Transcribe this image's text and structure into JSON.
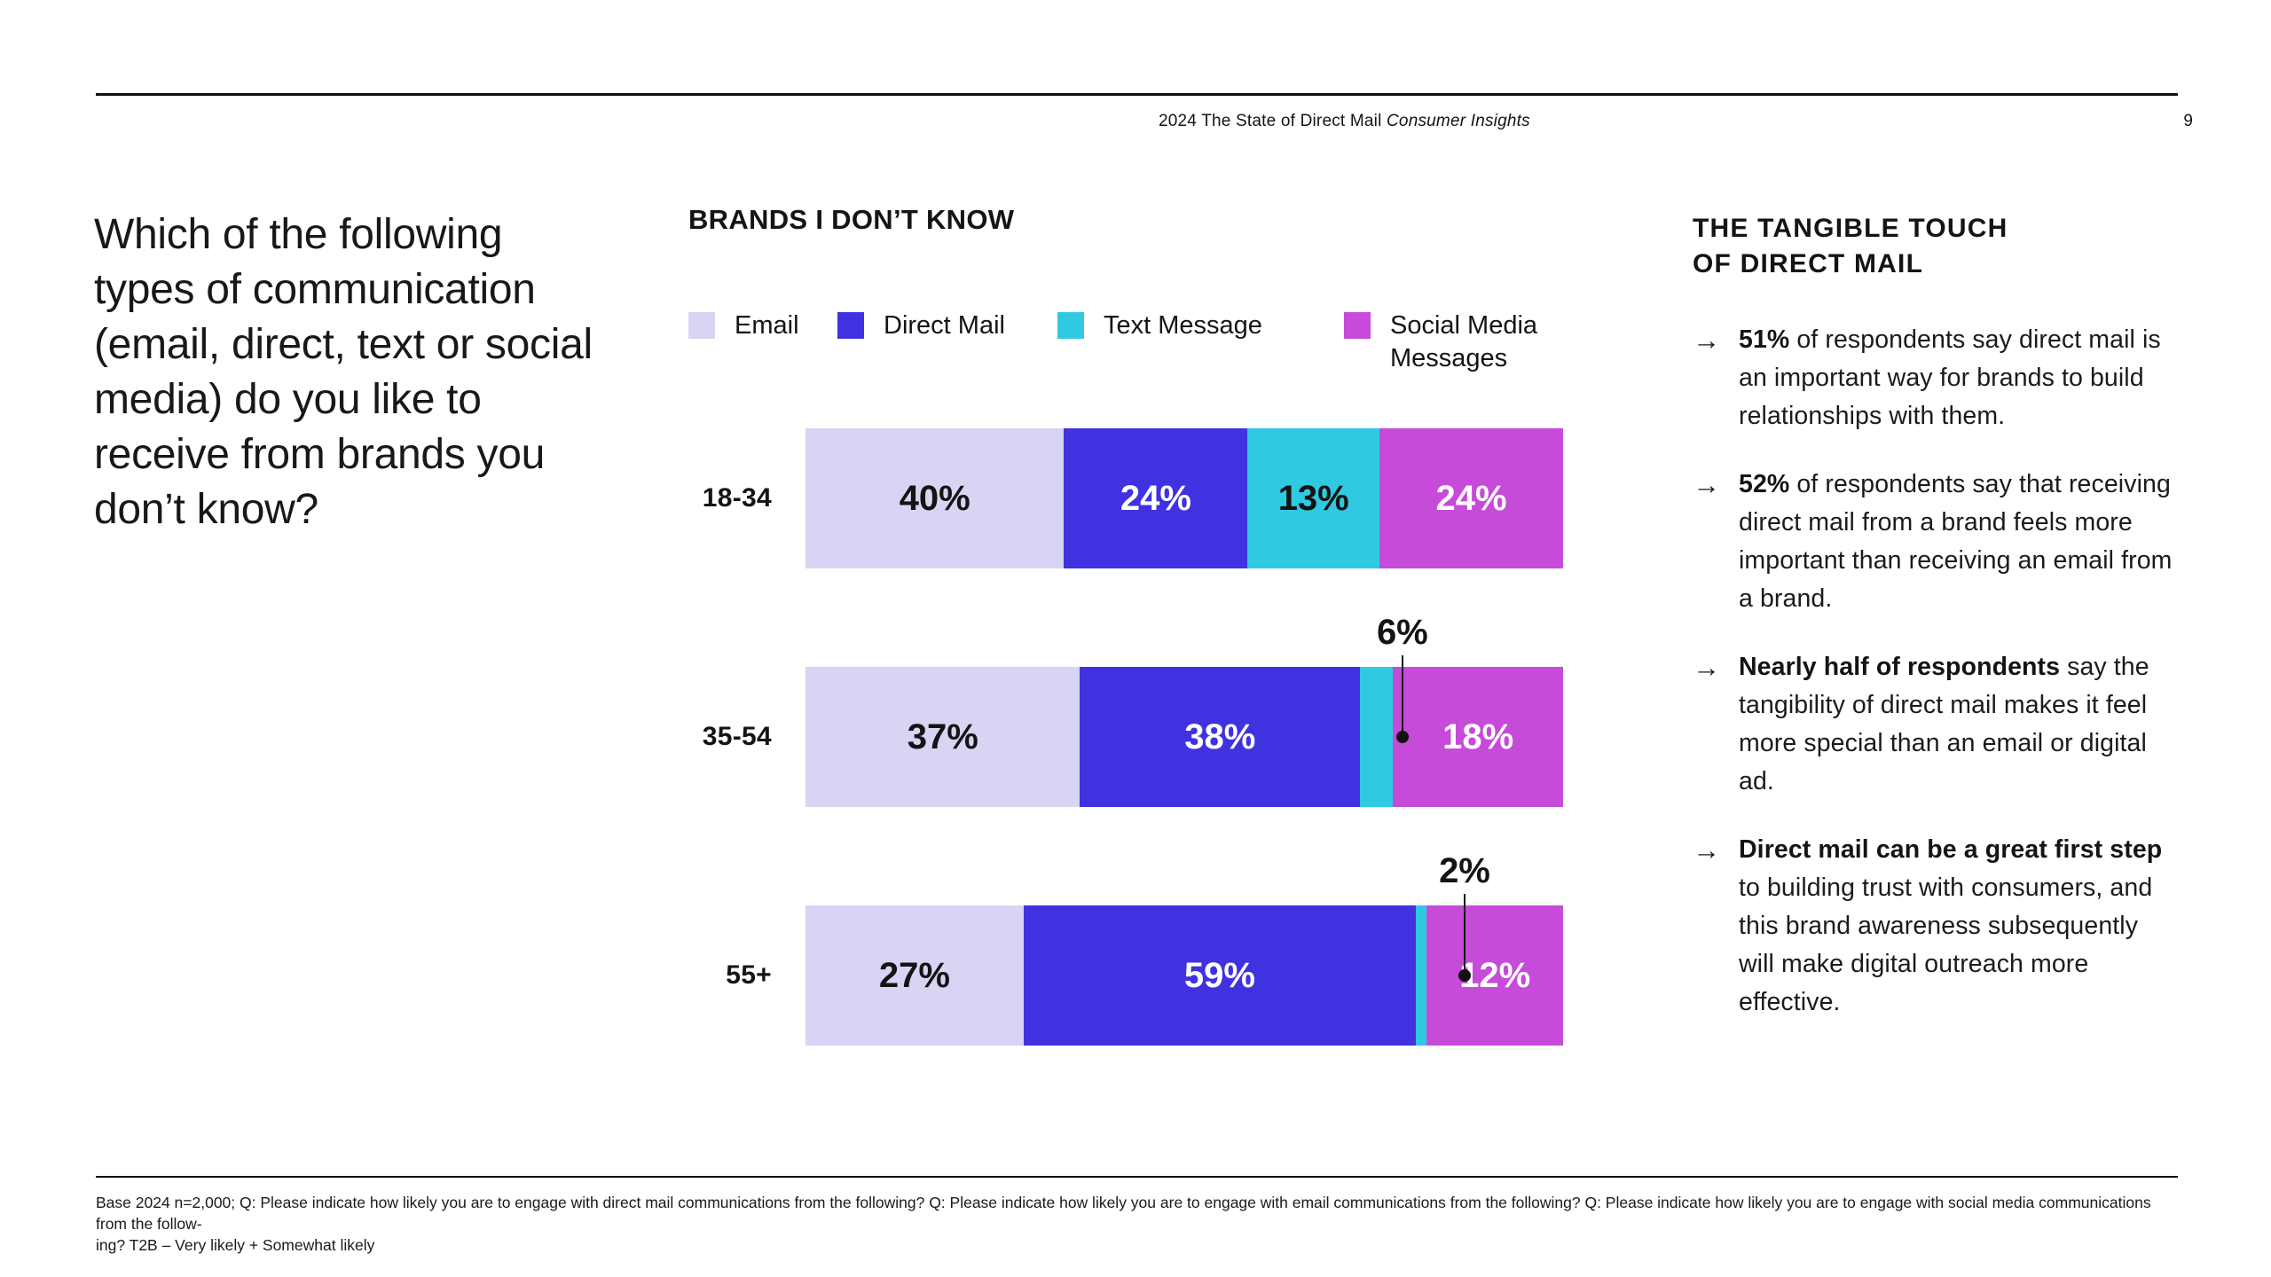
{
  "header": {
    "title_prefix": "2024 The State of Direct Mail ",
    "title_italic": "Consumer Insights",
    "page_number": "9"
  },
  "question": "Which of the following types of communication (email, direct, text or social media) do you like to receive from brands you don’t know?",
  "chart_data": {
    "type": "bar",
    "variant": "stacked-horizontal",
    "title": "BRANDS I DON’T KNOW",
    "unit": "%",
    "legend": [
      "Email",
      "Direct Mail",
      "Text Message",
      "Social Media Messages"
    ],
    "colors": [
      "#D8D4F3",
      "#4032E0",
      "#2FC9E2",
      "#C64BD9"
    ],
    "label_styles": [
      "dark",
      "light",
      "dark",
      "light"
    ],
    "categories": [
      "18-34",
      "35-54",
      "55+"
    ],
    "series": [
      {
        "name": "Email",
        "values": [
          40,
          37,
          27
        ]
      },
      {
        "name": "Direct Mail",
        "values": [
          24,
          38,
          59
        ]
      },
      {
        "name": "Text Message",
        "values": [
          13,
          6,
          2
        ]
      },
      {
        "name": "Social Media Messages",
        "values": [
          24,
          18,
          12
        ]
      }
    ],
    "rows": [
      {
        "category": "18-34",
        "values": [
          40,
          24,
          13,
          24
        ],
        "callout_index": null
      },
      {
        "category": "35-54",
        "values": [
          37,
          38,
          6,
          18
        ],
        "callout_index": 2
      },
      {
        "category": "55+",
        "values": [
          27,
          59,
          2,
          12
        ],
        "callout_index": 2
      }
    ],
    "inline_label_min": 10,
    "legend_position": "top",
    "axis": "none",
    "xlim": [
      0,
      100
    ]
  },
  "insights": {
    "heading_line1": "THE TANGIBLE TOUCH",
    "heading_line2": "OF DIRECT MAIL",
    "arrow_glyph": "→",
    "bullets": [
      {
        "lead": "51%",
        "text": " of respondents say direct mail is an important way for brands to build relationships with them."
      },
      {
        "lead": "52%",
        "text": " of respondents say that receiving direct mail from a brand feels more important than receiving an email from a brand."
      },
      {
        "lead": "Nearly half of respondents",
        "text": " say the tangibility of direct mail makes it feel more special than an email or digital ad."
      },
      {
        "lead": "Direct mail can be a great first step",
        "text": " to building trust with consumers, and this brand awareness subsequently will make digital outreach more effective."
      }
    ]
  },
  "footnote": {
    "line1": "Base 2024 n=2,000; Q: Please indicate how likely you are to engage with direct mail communications from the following? Q: Please indicate how likely you are to engage with email communications from the following? Q: Please indicate how likely you are to engage with social media communications from the follow-",
    "line2": "ing? T2B – Very likely + Somewhat likely"
  }
}
